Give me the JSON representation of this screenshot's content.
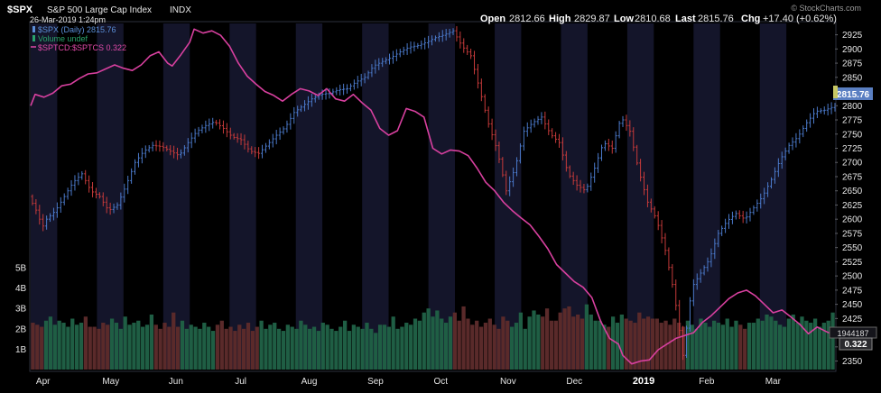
{
  "header": {
    "symbol": "$SPX",
    "name": "S&P 500 Large Cap Index",
    "exchange": "INDX",
    "datetime": "26-Mar-2019 1:24pm",
    "open_label": "Open",
    "open": "2812.66",
    "high_label": "High",
    "high": "2829.87",
    "low_label": "Low",
    "low": "2810.68",
    "last_label": "Last",
    "last": "2815.76",
    "chg_label": "Chg",
    "chg": "+17.40 (+0.62%)",
    "watermark": "© StockCharts.com"
  },
  "legend": [
    {
      "text": "$SPX (Daily) 2815.76",
      "color": "#5b8fd9"
    },
    {
      "text": "Volume undef",
      "color": "#2aa36b"
    },
    {
      "text": "$SPTCD:$SPTCS 0.322",
      "color": "#e04aa8"
    }
  ],
  "markers": {
    "price_last": "2815.76",
    "volume_last": "1944187",
    "ratio_last": "0.322"
  },
  "colors": {
    "up": "#4a78c8",
    "down": "#c53a3a",
    "ratio": "#d8409f",
    "volume_up": "#1f5e44",
    "volume_down": "#5a2a2a",
    "band": "#14152a",
    "background": "#000000"
  },
  "chart_data": {
    "type": "line",
    "title": "$SPX S&P 500 Large Cap Index INDX",
    "price_axis": {
      "ylim": [
        2335,
        2945
      ],
      "ticks": [
        2350,
        2375,
        2400,
        2425,
        2450,
        2475,
        2500,
        2525,
        2550,
        2575,
        2600,
        2625,
        2650,
        2675,
        2700,
        2725,
        2750,
        2775,
        2800,
        2825,
        2850,
        2875,
        2900,
        2925
      ]
    },
    "volume_axis": {
      "ylim": [
        0,
        6
      ],
      "ticks": [
        1,
        2,
        3,
        4,
        5
      ],
      "tick_labels": [
        "1B",
        "2B",
        "3B",
        "4B",
        "5B"
      ]
    },
    "x_axis": {
      "labels": [
        "Apr",
        "May",
        "Jun",
        "Jul",
        "Aug",
        "Sep",
        "Oct",
        "Nov",
        "Dec",
        "2019",
        "Feb",
        "Mar"
      ],
      "label_positions": [
        0.8,
        15.8,
        30.8,
        45.8,
        60.8,
        75.8,
        90.8,
        105.8,
        120.8,
        135.8,
        150.8,
        165.8
      ],
      "xlim": [
        0,
        182
      ],
      "bands": [
        [
          -2,
          6
        ],
        [
          15,
          21
        ],
        [
          30,
          36
        ],
        [
          45,
          51
        ],
        [
          60,
          66
        ],
        [
          75,
          81
        ],
        [
          90,
          96
        ],
        [
          105,
          111
        ],
        [
          120,
          126
        ],
        [
          135,
          141
        ],
        [
          150,
          156
        ],
        [
          165,
          171
        ]
      ]
    },
    "series": [
      {
        "name": "$SPX (Daily) 2815.76",
        "kind": "close",
        "points": [
          [
            0,
            2640
          ],
          [
            2,
            2610
          ],
          [
            3,
            2585
          ],
          [
            4,
            2600
          ],
          [
            6,
            2615
          ],
          [
            8,
            2640
          ],
          [
            10,
            2665
          ],
          [
            12,
            2680
          ],
          [
            14,
            2650
          ],
          [
            16,
            2640
          ],
          [
            18,
            2615
          ],
          [
            20,
            2625
          ],
          [
            22,
            2660
          ],
          [
            24,
            2700
          ],
          [
            26,
            2720
          ],
          [
            28,
            2730
          ],
          [
            30,
            2728
          ],
          [
            32,
            2720
          ],
          [
            34,
            2712
          ],
          [
            36,
            2735
          ],
          [
            38,
            2755
          ],
          [
            40,
            2765
          ],
          [
            42,
            2772
          ],
          [
            44,
            2760
          ],
          [
            46,
            2745
          ],
          [
            48,
            2740
          ],
          [
            50,
            2720
          ],
          [
            52,
            2716
          ],
          [
            54,
            2732
          ],
          [
            56,
            2748
          ],
          [
            58,
            2762
          ],
          [
            60,
            2788
          ],
          [
            62,
            2800
          ],
          [
            64,
            2812
          ],
          [
            66,
            2820
          ],
          [
            68,
            2822
          ],
          [
            70,
            2828
          ],
          [
            72,
            2830
          ],
          [
            74,
            2842
          ],
          [
            76,
            2850
          ],
          [
            78,
            2870
          ],
          [
            80,
            2878
          ],
          [
            82,
            2885
          ],
          [
            84,
            2895
          ],
          [
            86,
            2903
          ],
          [
            88,
            2906
          ],
          [
            90,
            2912
          ],
          [
            92,
            2920
          ],
          [
            94,
            2925
          ],
          [
            96,
            2932
          ],
          [
            98,
            2905
          ],
          [
            100,
            2888
          ],
          [
            102,
            2828
          ],
          [
            104,
            2768
          ],
          [
            106,
            2720
          ],
          [
            108,
            2650
          ],
          [
            110,
            2690
          ],
          [
            112,
            2755
          ],
          [
            114,
            2770
          ],
          [
            116,
            2780
          ],
          [
            118,
            2750
          ],
          [
            120,
            2735
          ],
          [
            122,
            2680
          ],
          [
            124,
            2660
          ],
          [
            126,
            2650
          ],
          [
            128,
            2690
          ],
          [
            130,
            2735
          ],
          [
            132,
            2725
          ],
          [
            134,
            2780
          ],
          [
            136,
            2755
          ],
          [
            138,
            2685
          ],
          [
            140,
            2630
          ],
          [
            142,
            2600
          ],
          [
            144,
            2545
          ],
          [
            146,
            2470
          ],
          [
            148,
            2360
          ],
          [
            150,
            2480
          ],
          [
            152,
            2505
          ],
          [
            154,
            2530
          ],
          [
            156,
            2575
          ],
          [
            158,
            2597
          ],
          [
            160,
            2610
          ],
          [
            162,
            2600
          ],
          [
            164,
            2620
          ],
          [
            166,
            2640
          ],
          [
            168,
            2670
          ],
          [
            170,
            2705
          ],
          [
            172,
            2730
          ],
          [
            174,
            2745
          ],
          [
            176,
            2770
          ],
          [
            178,
            2790
          ],
          [
            180,
            2792
          ],
          [
            182,
            2798
          ]
        ]
      },
      {
        "name": "Volume undef",
        "kind": "volume",
        "values_billions": [
          2.3,
          2.2,
          2.1,
          2.4,
          2.6,
          2.2,
          2.4,
          2.3,
          2.1,
          2.5,
          2.2,
          2.3,
          2.6,
          2.1,
          2.1,
          2.0,
          2.3,
          2.2,
          2.5,
          2.3,
          2.0,
          2.6,
          2.2,
          2.3,
          2.4,
          2.1,
          2.2,
          2.7,
          2.2,
          2.0,
          2.3,
          2.1,
          2.8,
          2.1,
          2.4,
          2.0,
          2.2,
          2.1,
          2.0,
          2.3,
          2.1,
          1.9,
          2.2,
          2.4,
          2.0,
          2.1,
          1.9,
          2.2,
          2.0,
          2.3,
          1.9,
          2.1,
          2.4,
          2.0,
          2.2,
          2.3,
          2.0,
          1.9,
          2.2,
          2.1,
          2.0,
          2.4,
          2.2,
          2.0,
          2.1,
          1.9,
          2.3,
          2.2,
          2.0,
          1.9,
          2.1,
          2.4,
          1.9,
          2.2,
          2.1,
          2.0,
          2.3,
          2.0,
          1.8,
          2.2,
          2.2,
          2.1,
          2.6,
          2.0,
          2.1,
          2.3,
          2.2,
          2.5,
          2.4,
          2.8,
          3.0,
          2.6,
          2.9,
          2.5,
          2.3,
          2.6,
          2.8,
          2.4,
          3.1,
          2.5,
          2.2,
          2.4,
          2.1,
          2.3,
          2.5,
          2.2,
          2.0,
          2.6,
          2.4,
          2.1,
          2.3,
          2.8,
          2.0,
          2.6,
          2.9,
          2.7,
          2.6,
          3.0,
          2.4,
          2.4,
          2.8,
          3.0,
          3.1,
          2.6,
          2.7,
          2.5,
          3.2,
          2.7,
          2.4,
          2.4,
          2.2,
          2.1,
          2.6,
          2.3,
          2.7,
          2.5,
          2.4,
          2.3,
          2.8,
          2.5,
          2.6,
          2.5,
          2.5,
          2.3,
          2.4,
          2.2,
          2.5,
          2.3,
          2.1,
          2.4,
          2.2,
          2.0,
          2.5,
          2.3,
          2.1,
          2.4,
          2.3,
          2.2,
          2.5,
          2.1,
          2.4,
          2.2,
          2.0,
          2.3,
          2.3,
          2.5,
          2.4,
          2.7,
          2.6,
          2.4,
          2.2,
          2.1,
          2.5,
          2.7,
          2.3,
          2.6,
          2.4,
          2.3,
          2.5,
          2.1,
          2.3,
          2.4,
          2.8
        ]
      },
      {
        "name": "$SPTCD:$SPTCS 0.322",
        "kind": "ratio",
        "points_price_scale": [
          [
            0,
            2800
          ],
          [
            1,
            2820
          ],
          [
            3,
            2815
          ],
          [
            5,
            2822
          ],
          [
            7,
            2835
          ],
          [
            9,
            2838
          ],
          [
            11,
            2848
          ],
          [
            13,
            2856
          ],
          [
            15,
            2858
          ],
          [
            17,
            2865
          ],
          [
            19,
            2872
          ],
          [
            21,
            2866
          ],
          [
            23,
            2862
          ],
          [
            25,
            2872
          ],
          [
            27,
            2888
          ],
          [
            29,
            2895
          ],
          [
            31,
            2875
          ],
          [
            32,
            2870
          ],
          [
            34,
            2890
          ],
          [
            36,
            2912
          ],
          [
            37,
            2935
          ],
          [
            39,
            2928
          ],
          [
            41,
            2932
          ],
          [
            43,
            2924
          ],
          [
            45,
            2905
          ],
          [
            47,
            2875
          ],
          [
            49,
            2852
          ],
          [
            51,
            2838
          ],
          [
            53,
            2825
          ],
          [
            55,
            2818
          ],
          [
            57,
            2808
          ],
          [
            59,
            2820
          ],
          [
            61,
            2830
          ],
          [
            63,
            2826
          ],
          [
            65,
            2818
          ],
          [
            67,
            2830
          ],
          [
            69,
            2812
          ],
          [
            71,
            2808
          ],
          [
            73,
            2820
          ],
          [
            75,
            2805
          ],
          [
            77,
            2792
          ],
          [
            79,
            2760
          ],
          [
            81,
            2748
          ],
          [
            83,
            2756
          ],
          [
            85,
            2795
          ],
          [
            87,
            2790
          ],
          [
            89,
            2780
          ],
          [
            91,
            2725
          ],
          [
            93,
            2715
          ],
          [
            95,
            2722
          ],
          [
            97,
            2720
          ],
          [
            99,
            2712
          ],
          [
            101,
            2690
          ],
          [
            103,
            2665
          ],
          [
            105,
            2650
          ],
          [
            107,
            2630
          ],
          [
            109,
            2615
          ],
          [
            111,
            2602
          ],
          [
            113,
            2590
          ],
          [
            115,
            2570
          ],
          [
            117,
            2548
          ],
          [
            119,
            2520
          ],
          [
            121,
            2505
          ],
          [
            123,
            2490
          ],
          [
            125,
            2480
          ],
          [
            127,
            2462
          ],
          [
            129,
            2420
          ],
          [
            131,
            2390
          ],
          [
            133,
            2380
          ],
          [
            134,
            2360
          ],
          [
            136,
            2345
          ],
          [
            138,
            2350
          ],
          [
            140,
            2352
          ],
          [
            142,
            2370
          ],
          [
            144,
            2380
          ],
          [
            146,
            2390
          ],
          [
            148,
            2395
          ],
          [
            150,
            2400
          ],
          [
            152,
            2418
          ],
          [
            154,
            2430
          ],
          [
            156,
            2445
          ],
          [
            158,
            2460
          ],
          [
            160,
            2470
          ],
          [
            162,
            2475
          ],
          [
            164,
            2465
          ],
          [
            166,
            2450
          ],
          [
            168,
            2435
          ],
          [
            170,
            2440
          ],
          [
            172,
            2428
          ],
          [
            174,
            2415
          ],
          [
            176,
            2398
          ],
          [
            178,
            2410
          ],
          [
            180,
            2402
          ],
          [
            182,
            2395
          ]
        ]
      }
    ]
  }
}
